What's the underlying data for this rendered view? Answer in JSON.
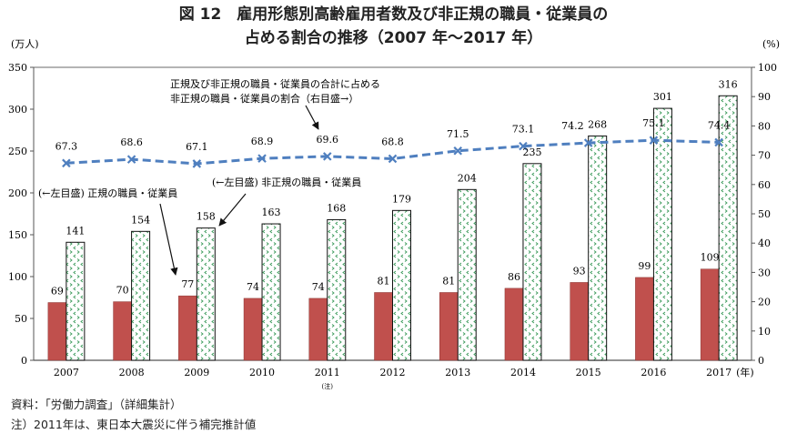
{
  "title_line1": "図 12　雇用形態別高齢雇用者数及び非正規の職員・従業員の",
  "title_line2": "占める割合の推移（2007 年～2017 年）",
  "source_note": "資料：｢労働力調査｣（詳細集計）",
  "footnote": "注）2011年は、東日本大震災に伴う補完推計値",
  "chart_data": {
    "type": "bar+line",
    "categories": [
      "2007",
      "2008",
      "2009",
      "2010",
      "2011",
      "2012",
      "2013",
      "2014",
      "2015",
      "2016",
      "2017"
    ],
    "category_notes": {
      "2011": "(注)"
    },
    "x_unit": "(年)",
    "y_left": {
      "label": "(万人)",
      "lim": [
        0,
        350
      ],
      "ticks": [
        0,
        50,
        100,
        150,
        200,
        250,
        300,
        350
      ]
    },
    "y_right": {
      "label": "(%)",
      "lim": [
        0,
        100
      ],
      "ticks": [
        0,
        10,
        20,
        30,
        40,
        50,
        60,
        70,
        80,
        90,
        100
      ]
    },
    "series": [
      {
        "name": "(←左目盛) 正規の職員・従業員",
        "type": "bar",
        "axis": "left",
        "color": "#c0504d",
        "values": [
          69,
          70,
          77,
          74,
          74,
          81,
          81,
          86,
          93,
          99,
          109
        ]
      },
      {
        "name": "(←左目盛) 非正規の職員・従業員",
        "type": "bar",
        "axis": "left",
        "color": "#ffffff",
        "pattern_color": "#3a9a5a",
        "values": [
          141,
          154,
          158,
          163,
          168,
          179,
          204,
          235,
          268,
          301,
          316
        ]
      },
      {
        "name": "正規及び非正規の職員・従業員の合計に占める非正規の職員・従業員の割合（右目盛→）",
        "name_lines": [
          "正規及び非正規の職員・従業員の合計に占める",
          "非正規の職員・従業員の割合（右目盛→）"
        ],
        "type": "line",
        "axis": "right",
        "color": "#4f7fbf",
        "style": "dashed",
        "marker": "x",
        "values": [
          67.3,
          68.6,
          67.1,
          68.9,
          69.6,
          68.8,
          71.5,
          73.1,
          74.2,
          75.1,
          74.4
        ]
      }
    ],
    "grid": false
  }
}
